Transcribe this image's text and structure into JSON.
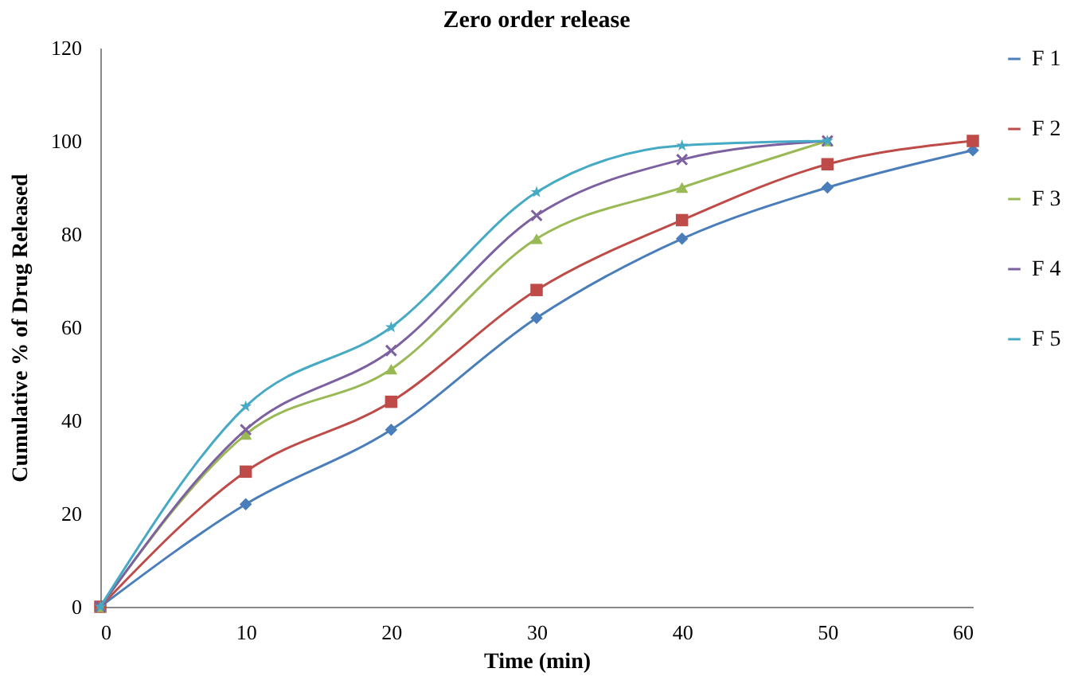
{
  "chart_data": {
    "type": "line",
    "title": "Zero order release",
    "xlabel": "Time (min)",
    "ylabel": "Cumulative % of Drug    Released",
    "x": [
      0,
      10,
      20,
      30,
      40,
      50,
      60
    ],
    "xlim": [
      0,
      60
    ],
    "xticks": [
      0,
      10,
      20,
      30,
      40,
      50,
      60
    ],
    "ylim": [
      0,
      120
    ],
    "yticks": [
      0,
      20,
      40,
      60,
      80,
      100,
      120
    ],
    "grid": false,
    "legend": "right",
    "line_style": "solid",
    "series": [
      {
        "name": "F 1",
        "color": "#4a7ebb",
        "marker": "diamond",
        "values": [
          0,
          22,
          38,
          62,
          79,
          90,
          98
        ]
      },
      {
        "name": "F 2",
        "color": "#be4b48",
        "marker": "square",
        "values": [
          0,
          29,
          44,
          68,
          83,
          95,
          100
        ]
      },
      {
        "name": "F 3",
        "color": "#98b954",
        "marker": "triangle",
        "x": [
          0,
          10,
          20,
          30,
          40,
          50
        ],
        "values": [
          0,
          37,
          51,
          79,
          90,
          100
        ]
      },
      {
        "name": "F 4",
        "color": "#7d60a0",
        "marker": "cross",
        "x": [
          0,
          10,
          20,
          30,
          40,
          50
        ],
        "values": [
          0,
          38,
          55,
          84,
          96,
          100
        ]
      },
      {
        "name": "F 5",
        "color": "#46aac5",
        "marker": "star",
        "x": [
          0,
          10,
          20,
          30,
          40,
          50
        ],
        "values": [
          0,
          43,
          60,
          89,
          99,
          100
        ]
      }
    ]
  }
}
